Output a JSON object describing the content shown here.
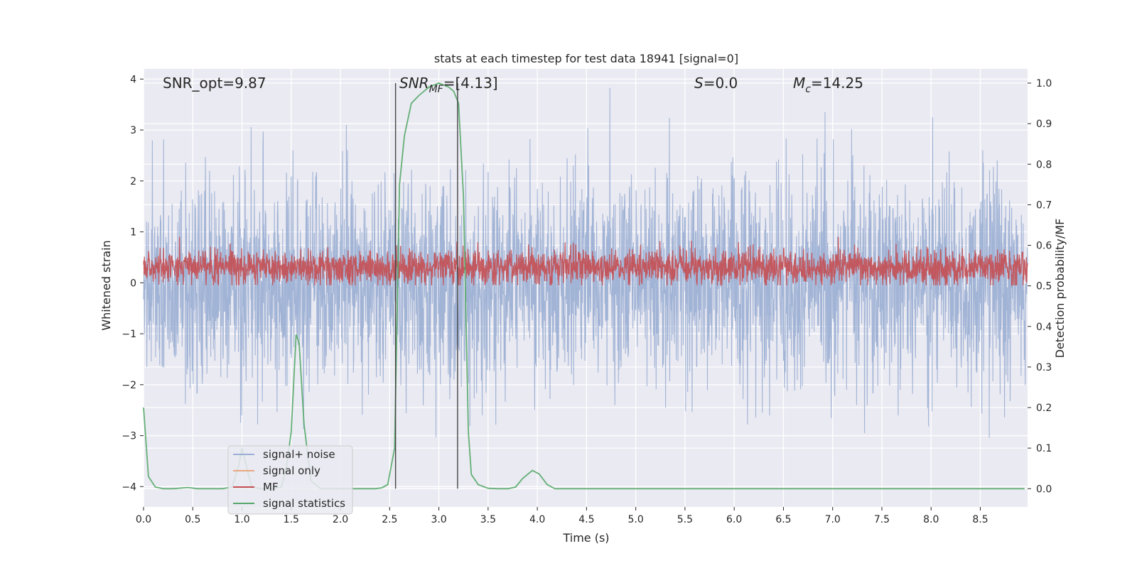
{
  "chart_data": {
    "type": "line",
    "title": "stats at each timestep for test data 18941 [signal=0]",
    "xlabel": "Time (s)",
    "ylabel_left": "Whitened strain",
    "ylabel_right": "Detection probability/MF",
    "xlim": [
      0.0,
      8.98
    ],
    "ylim_left": [
      -4.4,
      4.2
    ],
    "ylim_right": [
      -0.045,
      1.035
    ],
    "x_ticks": [
      "0.0",
      "0.5",
      "1.0",
      "1.5",
      "2.0",
      "2.5",
      "3.0",
      "3.5",
      "4.0",
      "4.5",
      "5.0",
      "5.5",
      "6.0",
      "6.5",
      "7.0",
      "7.5",
      "8.0",
      "8.5"
    ],
    "y_left_ticks": [
      "−4",
      "−3",
      "−2",
      "−1",
      "0",
      "1",
      "2",
      "3",
      "4"
    ],
    "y_right_ticks": [
      "0.0",
      "0.1",
      "0.2",
      "0.3",
      "0.4",
      "0.5",
      "0.6",
      "0.7",
      "0.8",
      "0.9",
      "1.0"
    ],
    "grid": true,
    "legend_position": "lower-left",
    "annotations": {
      "snr_opt": "SNR_opt=9.87",
      "snr_mf_main": "SNR",
      "snr_mf_sub": "MF",
      "snr_mf_tail": "=[4.13]",
      "s_main": "S",
      "s_tail": "=0.0",
      "mc_main": "M",
      "mc_sub": "c",
      "mc_tail": "=14.25"
    },
    "vertical_lines_x": [
      2.56,
      3.19
    ],
    "series": [
      {
        "name": "signal+ noise",
        "axis": "left",
        "color": "#9aaed3",
        "kind": "noise",
        "center": 0.0,
        "typical_band": [
          -1.65,
          1.65
        ],
        "max": 3.85,
        "min": -3.75
      },
      {
        "name": "signal only",
        "axis": "left",
        "color": "#e8a882",
        "kind": "flat",
        "center": 0.0
      },
      {
        "name": "MF",
        "axis": "left",
        "color": "#c44e52",
        "kind": "noise",
        "center": 0.3,
        "typical_band": [
          0.05,
          0.6
        ],
        "max": 1.05,
        "min": -0.05
      },
      {
        "name": "signal statistics",
        "axis": "right",
        "color": "#55a868",
        "x": [
          0.0,
          0.05,
          0.12,
          0.2,
          0.3,
          0.45,
          0.55,
          0.8,
          0.9,
          0.97,
          1.0,
          1.05,
          1.1,
          1.2,
          1.3,
          1.4,
          1.45,
          1.5,
          1.55,
          1.58,
          1.63,
          1.7,
          1.8,
          1.9,
          2.0,
          2.2,
          2.35,
          2.42,
          2.48,
          2.55,
          2.6,
          2.65,
          2.72,
          2.8,
          2.9,
          3.0,
          3.1,
          3.15,
          3.2,
          3.25,
          3.3,
          3.33,
          3.4,
          3.5,
          3.6,
          3.7,
          3.78,
          3.85,
          3.95,
          4.02,
          4.1,
          4.18,
          4.3,
          8.95
        ],
        "y": [
          0.2,
          0.03,
          0.004,
          0.0,
          0.0,
          0.003,
          0.0,
          0.0,
          0.004,
          0.06,
          0.1,
          0.05,
          0.004,
          0.0,
          0.0,
          0.004,
          0.05,
          0.14,
          0.38,
          0.36,
          0.16,
          0.02,
          0.0,
          0.0,
          0.0,
          0.0,
          0.0,
          0.002,
          0.01,
          0.1,
          0.75,
          0.87,
          0.95,
          0.97,
          0.99,
          1.0,
          0.99,
          0.98,
          0.95,
          0.72,
          0.14,
          0.035,
          0.01,
          0.001,
          0.0,
          0.0,
          0.004,
          0.025,
          0.045,
          0.036,
          0.01,
          0.0,
          0.0,
          0.0
        ]
      }
    ]
  }
}
